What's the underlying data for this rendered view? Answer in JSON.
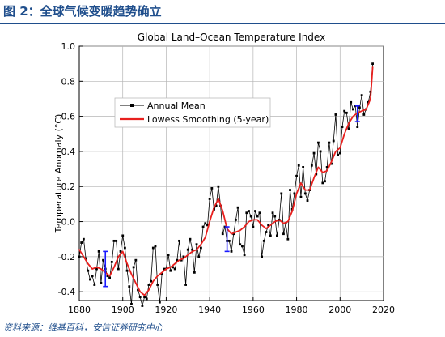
{
  "figure": {
    "title": "图 2：全球气候变暖趋势确立",
    "source": "资料来源：维基百科，安信证券研究中心"
  },
  "colors": {
    "accent": "#1f4e8c",
    "annual": "#000000",
    "smooth": "#e8201e",
    "error_bar": "#1a1aff"
  },
  "chart_data": {
    "type": "line",
    "title": "Global Land–Ocean Temperature Index",
    "xlabel": "",
    "ylabel": "Temperature Anomaly (°C)",
    "xlim": [
      1880,
      2020
    ],
    "ylim": [
      -0.45,
      1.0
    ],
    "x_ticks": [
      1880,
      1900,
      1920,
      1940,
      1960,
      1980,
      2000,
      2020
    ],
    "x_tick_labels": [
      "1880",
      "1900",
      "1920",
      "1940",
      "1960",
      "1980",
      "2000",
      "2020"
    ],
    "y_ticks": [
      -0.4,
      -0.2,
      0.0,
      0.2,
      0.4,
      0.6,
      0.8,
      1.0
    ],
    "y_tick_labels": [
      "-0.4",
      "-0.2",
      "0.0",
      "0.2",
      "0.4",
      "0.6",
      "0.8",
      "1.0"
    ],
    "grid": true,
    "legend_position": "top-left",
    "series": [
      {
        "name": "Annual Mean",
        "style": "line-markers",
        "x": [
          1880,
          1881,
          1882,
          1883,
          1884,
          1885,
          1886,
          1887,
          1888,
          1889,
          1890,
          1891,
          1892,
          1893,
          1894,
          1895,
          1896,
          1897,
          1898,
          1899,
          1900,
          1901,
          1902,
          1903,
          1904,
          1905,
          1906,
          1907,
          1908,
          1909,
          1910,
          1911,
          1912,
          1913,
          1914,
          1915,
          1916,
          1917,
          1918,
          1919,
          1920,
          1921,
          1922,
          1923,
          1924,
          1925,
          1926,
          1927,
          1928,
          1929,
          1930,
          1931,
          1932,
          1933,
          1934,
          1935,
          1936,
          1937,
          1938,
          1939,
          1940,
          1941,
          1942,
          1943,
          1944,
          1945,
          1946,
          1947,
          1948,
          1949,
          1950,
          1951,
          1952,
          1953,
          1954,
          1955,
          1956,
          1957,
          1958,
          1959,
          1960,
          1961,
          1962,
          1963,
          1964,
          1965,
          1966,
          1967,
          1968,
          1969,
          1970,
          1971,
          1972,
          1973,
          1974,
          1975,
          1976,
          1977,
          1978,
          1979,
          1980,
          1981,
          1982,
          1983,
          1984,
          1985,
          1986,
          1987,
          1988,
          1989,
          1990,
          1991,
          1992,
          1993,
          1994,
          1995,
          1996,
          1997,
          1998,
          1999,
          2000,
          2001,
          2002,
          2003,
          2004,
          2005,
          2006,
          2007,
          2008,
          2009,
          2010,
          2011,
          2012,
          2013,
          2014,
          2015
        ],
        "y": [
          -0.2,
          -0.12,
          -0.1,
          -0.21,
          -0.28,
          -0.33,
          -0.31,
          -0.36,
          -0.27,
          -0.17,
          -0.35,
          -0.22,
          -0.27,
          -0.31,
          -0.32,
          -0.23,
          -0.11,
          -0.11,
          -0.27,
          -0.17,
          -0.08,
          -0.15,
          -0.28,
          -0.37,
          -0.47,
          -0.26,
          -0.22,
          -0.39,
          -0.43,
          -0.48,
          -0.43,
          -0.44,
          -0.36,
          -0.34,
          -0.15,
          -0.14,
          -0.36,
          -0.46,
          -0.3,
          -0.27,
          -0.27,
          -0.19,
          -0.28,
          -0.26,
          -0.27,
          -0.22,
          -0.11,
          -0.22,
          -0.2,
          -0.36,
          -0.16,
          -0.1,
          -0.16,
          -0.29,
          -0.13,
          -0.2,
          -0.15,
          -0.03,
          -0.01,
          -0.02,
          0.13,
          0.19,
          0.07,
          0.09,
          0.2,
          0.09,
          -0.07,
          -0.03,
          -0.11,
          -0.11,
          -0.17,
          -0.07,
          0.01,
          0.08,
          -0.13,
          -0.14,
          -0.19,
          0.05,
          0.06,
          0.03,
          -0.03,
          0.06,
          0.03,
          0.05,
          -0.2,
          -0.11,
          -0.06,
          -0.02,
          -0.08,
          0.05,
          0.03,
          -0.08,
          0.01,
          0.16,
          -0.07,
          -0.01,
          -0.1,
          0.18,
          0.07,
          0.16,
          0.26,
          0.32,
          0.14,
          0.31,
          0.16,
          0.12,
          0.18,
          0.32,
          0.39,
          0.27,
          0.45,
          0.4,
          0.22,
          0.23,
          0.31,
          0.45,
          0.33,
          0.46,
          0.61,
          0.38,
          0.39,
          0.54,
          0.63,
          0.62,
          0.53,
          0.68,
          0.64,
          0.66,
          0.54,
          0.65,
          0.72,
          0.61,
          0.64,
          0.68,
          0.74,
          0.9
        ]
      },
      {
        "name": "Lowess Smoothing (5-year)",
        "style": "smooth-line",
        "x": [
          1880,
          1882,
          1884,
          1886,
          1888,
          1890,
          1892,
          1894,
          1896,
          1898,
          1900,
          1902,
          1904,
          1906,
          1908,
          1910,
          1912,
          1914,
          1916,
          1918,
          1920,
          1922,
          1924,
          1926,
          1928,
          1930,
          1932,
          1934,
          1936,
          1938,
          1940,
          1942,
          1944,
          1946,
          1948,
          1950,
          1952,
          1954,
          1956,
          1958,
          1960,
          1962,
          1964,
          1966,
          1968,
          1970,
          1972,
          1974,
          1976,
          1978,
          1980,
          1982,
          1984,
          1986,
          1988,
          1990,
          1992,
          1994,
          1996,
          1998,
          2000,
          2002,
          2004,
          2006,
          2008,
          2010,
          2012,
          2014,
          2015
        ],
        "y": [
          -0.16,
          -0.2,
          -0.24,
          -0.27,
          -0.26,
          -0.27,
          -0.29,
          -0.31,
          -0.26,
          -0.2,
          -0.17,
          -0.24,
          -0.3,
          -0.35,
          -0.4,
          -0.42,
          -0.39,
          -0.34,
          -0.31,
          -0.29,
          -0.27,
          -0.26,
          -0.24,
          -0.22,
          -0.21,
          -0.19,
          -0.17,
          -0.16,
          -0.13,
          -0.09,
          0.0,
          0.08,
          0.13,
          0.06,
          -0.04,
          -0.07,
          -0.06,
          -0.05,
          -0.03,
          0.0,
          0.01,
          0.01,
          -0.02,
          -0.04,
          -0.02,
          0.0,
          0.01,
          -0.01,
          0.0,
          0.06,
          0.16,
          0.22,
          0.18,
          0.18,
          0.25,
          0.31,
          0.28,
          0.29,
          0.34,
          0.4,
          0.42,
          0.5,
          0.56,
          0.6,
          0.62,
          0.63,
          0.64,
          0.7,
          0.88
        ]
      }
    ],
    "error_bars": [
      {
        "x": 1892,
        "low": -0.37,
        "high": -0.17
      },
      {
        "x": 1948,
        "low": -0.17,
        "high": -0.03
      },
      {
        "x": 2008,
        "low": 0.57,
        "high": 0.66
      }
    ]
  }
}
